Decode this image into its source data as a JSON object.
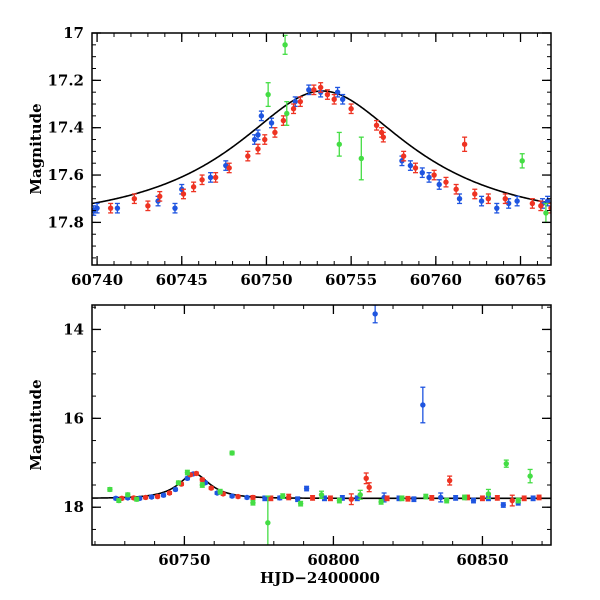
{
  "chart_data": [
    {
      "type": "scatter",
      "title": "",
      "xlabel": "",
      "ylabel": "Magnitude",
      "xlim": [
        60739.7,
        60766.8
      ],
      "ylim": [
        17.98,
        17.0
      ],
      "y_inverted": true,
      "x_ticks": [
        60740,
        60745,
        60750,
        60755,
        60760,
        60765
      ],
      "y_ticks": [
        17,
        17.2,
        17.4,
        17.6,
        17.8
      ],
      "y_tick_labels": [
        "17",
        "17.2",
        "17.4",
        "17.6",
        "17.8"
      ],
      "grid": false,
      "legend": "none",
      "model_curve": {
        "color": "#000000",
        "peak_x": 60753.3,
        "base_mag": 17.8,
        "peak_mag": 17.245,
        "u0": 0.47,
        "tE": 10.0
      },
      "series": [
        {
          "color": "#1f55e0",
          "points": [
            [
              60739.8,
              17.75,
              0.02
            ],
            [
              60740.0,
              17.74,
              0.02
            ],
            [
              60741.2,
              17.74,
              0.02
            ],
            [
              60743.6,
              17.71,
              0.02
            ],
            [
              60744.6,
              17.74,
              0.02
            ],
            [
              60745.0,
              17.66,
              0.02
            ],
            [
              60746.7,
              17.61,
              0.02
            ],
            [
              60747.6,
              17.56,
              0.02
            ],
            [
              60749.3,
              17.45,
              0.02
            ],
            [
              60749.5,
              17.43,
              0.02
            ],
            [
              60749.7,
              17.35,
              0.02
            ],
            [
              60750.3,
              17.38,
              0.02
            ],
            [
              60751.7,
              17.29,
              0.02
            ],
            [
              60752.5,
              17.24,
              0.02
            ],
            [
              60753.2,
              17.25,
              0.02
            ],
            [
              60754.2,
              17.25,
              0.02
            ],
            [
              60754.5,
              17.28,
              0.02
            ],
            [
              60758.0,
              17.54,
              0.02
            ],
            [
              60758.5,
              17.56,
              0.02
            ],
            [
              60759.2,
              17.59,
              0.02
            ],
            [
              60759.6,
              17.61,
              0.02
            ],
            [
              60760.2,
              17.64,
              0.02
            ],
            [
              60761.4,
              17.7,
              0.02
            ],
            [
              60762.7,
              17.71,
              0.02
            ],
            [
              60763.6,
              17.74,
              0.02
            ],
            [
              60764.3,
              17.72,
              0.02
            ],
            [
              60764.8,
              17.71,
              0.02
            ],
            [
              60766.3,
              17.72,
              0.02
            ],
            [
              60766.6,
              17.71,
              0.02
            ]
          ]
        },
        {
          "color": "#ee3322",
          "points": [
            [
              60740.8,
              17.74,
              0.02
            ],
            [
              60742.2,
              17.7,
              0.02
            ],
            [
              60743.0,
              17.73,
              0.02
            ],
            [
              60743.7,
              17.69,
              0.02
            ],
            [
              60745.1,
              17.68,
              0.02
            ],
            [
              60745.7,
              17.65,
              0.02
            ],
            [
              60746.2,
              17.62,
              0.02
            ],
            [
              60747.0,
              17.61,
              0.02
            ],
            [
              60747.8,
              17.57,
              0.02
            ],
            [
              60748.9,
              17.52,
              0.02
            ],
            [
              60749.5,
              17.49,
              0.02
            ],
            [
              60749.9,
              17.45,
              0.02
            ],
            [
              60750.5,
              17.42,
              0.02
            ],
            [
              60751.0,
              17.37,
              0.02
            ],
            [
              60751.6,
              17.32,
              0.02
            ],
            [
              60752.0,
              17.29,
              0.02
            ],
            [
              60752.8,
              17.24,
              0.02
            ],
            [
              60753.2,
              17.23,
              0.02
            ],
            [
              60753.6,
              17.26,
              0.02
            ],
            [
              60754.0,
              17.28,
              0.02
            ],
            [
              60755.0,
              17.32,
              0.02
            ],
            [
              60756.5,
              17.39,
              0.02
            ],
            [
              60756.8,
              17.42,
              0.02
            ],
            [
              60756.9,
              17.44,
              0.02
            ],
            [
              60758.1,
              17.52,
              0.02
            ],
            [
              60758.8,
              17.57,
              0.02
            ],
            [
              60759.9,
              17.6,
              0.02
            ],
            [
              60760.6,
              17.63,
              0.02
            ],
            [
              60761.2,
              17.66,
              0.02
            ],
            [
              60761.7,
              17.47,
              0.03
            ],
            [
              60762.3,
              17.68,
              0.02
            ],
            [
              60763.1,
              17.7,
              0.02
            ],
            [
              60764.1,
              17.7,
              0.02
            ],
            [
              60765.7,
              17.72,
              0.02
            ],
            [
              60766.2,
              17.73,
              0.02
            ],
            [
              60766.8,
              17.74,
              0.02
            ]
          ]
        },
        {
          "color": "#44dd44",
          "points": [
            [
              60750.1,
              17.26,
              0.05
            ],
            [
              60751.1,
              17.05,
              0.04
            ],
            [
              60751.2,
              17.34,
              0.05
            ],
            [
              60754.3,
              17.47,
              0.05
            ],
            [
              60755.6,
              17.53,
              0.09
            ],
            [
              60765.1,
              17.54,
              0.03
            ],
            [
              60766.5,
              17.76,
              0.04
            ]
          ]
        }
      ]
    },
    {
      "type": "scatter",
      "title": "",
      "xlabel": "HJD−2400000",
      "ylabel": "Magnitude",
      "xlim": [
        60719,
        60873
      ],
      "ylim": [
        18.85,
        13.45
      ],
      "y_inverted": true,
      "x_ticks": [
        60750,
        60800,
        60850
      ],
      "y_ticks": [
        14,
        16,
        18
      ],
      "y_tick_labels": [
        "14",
        "16",
        "18"
      ],
      "grid": false,
      "legend": "none",
      "model_curve": {
        "color": "#000000",
        "peak_x": 60753.3,
        "base_mag": 17.8,
        "peak_mag": 17.245,
        "u0": 0.47,
        "tE": 10.0
      },
      "series": [
        {
          "color": "#1f55e0",
          "points": [
            [
              60727,
              17.8,
              0.03
            ],
            [
              60731,
              17.79,
              0.03
            ],
            [
              60735,
              17.8,
              0.03
            ],
            [
              60739,
              17.77,
              0.03
            ],
            [
              60743,
              17.73,
              0.03
            ],
            [
              60747,
              17.6,
              0.03
            ],
            [
              60751,
              17.35,
              0.03
            ],
            [
              60753,
              17.25,
              0.03
            ],
            [
              60757,
              17.45,
              0.03
            ],
            [
              60761,
              17.68,
              0.03
            ],
            [
              60766,
              17.75,
              0.03
            ],
            [
              60771,
              17.78,
              0.03
            ],
            [
              60777,
              17.8,
              0.05
            ],
            [
              60782,
              17.79,
              0.04
            ],
            [
              60788,
              17.82,
              0.05
            ],
            [
              60791,
              17.58,
              0.05
            ],
            [
              60797,
              17.8,
              0.05
            ],
            [
              60803,
              17.79,
              0.05
            ],
            [
              60808,
              17.8,
              0.05
            ],
            [
              60814,
              13.65,
              0.2
            ],
            [
              60817,
              17.78,
              0.1
            ],
            [
              60822,
              17.8,
              0.05
            ],
            [
              60827,
              17.82,
              0.05
            ],
            [
              60830,
              15.7,
              0.4
            ],
            [
              60836,
              17.78,
              0.1
            ],
            [
              60841,
              17.79,
              0.05
            ],
            [
              60847,
              17.85,
              0.05
            ],
            [
              60852,
              17.8,
              0.05
            ],
            [
              60857,
              17.95,
              0.05
            ],
            [
              60862,
              17.9,
              0.05
            ],
            [
              60867,
              17.8,
              0.05
            ]
          ]
        },
        {
          "color": "#ee3322",
          "points": [
            [
              60729,
              17.8,
              0.03
            ],
            [
              60733,
              17.79,
              0.03
            ],
            [
              60737,
              17.78,
              0.03
            ],
            [
              60741,
              17.76,
              0.03
            ],
            [
              60745,
              17.68,
              0.03
            ],
            [
              60749,
              17.48,
              0.03
            ],
            [
              60752,
              17.27,
              0.03
            ],
            [
              60754,
              17.24,
              0.03
            ],
            [
              60756,
              17.38,
              0.03
            ],
            [
              60759,
              17.57,
              0.03
            ],
            [
              60763,
              17.7,
              0.03
            ],
            [
              60768,
              17.76,
              0.03
            ],
            [
              60773,
              17.78,
              0.04
            ],
            [
              60779,
              17.8,
              0.05
            ],
            [
              60785,
              17.77,
              0.06
            ],
            [
              60793,
              17.79,
              0.05
            ],
            [
              60799,
              17.8,
              0.05
            ],
            [
              60806,
              17.82,
              0.12
            ],
            [
              60811,
              17.35,
              0.12
            ],
            [
              60812,
              17.55,
              0.1
            ],
            [
              60818,
              17.8,
              0.05
            ],
            [
              60825,
              17.81,
              0.05
            ],
            [
              60833,
              17.79,
              0.05
            ],
            [
              60839,
              17.4,
              0.1
            ],
            [
              60845,
              17.78,
              0.05
            ],
            [
              60850,
              17.8,
              0.05
            ],
            [
              60855,
              17.79,
              0.05
            ],
            [
              60860,
              17.85,
              0.12
            ],
            [
              60864,
              17.8,
              0.05
            ],
            [
              60869,
              17.78,
              0.05
            ]
          ]
        },
        {
          "color": "#44dd44",
          "points": [
            [
              60725,
              17.6,
              0.04
            ],
            [
              60728,
              17.85,
              0.04
            ],
            [
              60731,
              17.72,
              0.04
            ],
            [
              60734,
              17.82,
              0.04
            ],
            [
              60748,
              17.45,
              0.04
            ],
            [
              60751,
              17.22,
              0.05
            ],
            [
              60756,
              17.5,
              0.05
            ],
            [
              60762,
              17.65,
              0.05
            ],
            [
              60766,
              16.78,
              0.04
            ],
            [
              60773,
              17.9,
              0.05
            ],
            [
              60778,
              18.35,
              0.6
            ],
            [
              60783,
              17.75,
              0.05
            ],
            [
              60789,
              17.92,
              0.05
            ],
            [
              60796,
              17.72,
              0.08
            ],
            [
              60802,
              17.85,
              0.05
            ],
            [
              60809,
              17.72,
              0.1
            ],
            [
              60816,
              17.88,
              0.05
            ],
            [
              60823,
              17.8,
              0.05
            ],
            [
              60831,
              17.76,
              0.05
            ],
            [
              60838,
              17.85,
              0.05
            ],
            [
              60844,
              17.78,
              0.05
            ],
            [
              60852,
              17.7,
              0.1
            ],
            [
              60858,
              17.02,
              0.08
            ],
            [
              60862,
              17.85,
              0.05
            ],
            [
              60866,
              17.3,
              0.15
            ]
          ]
        }
      ]
    }
  ]
}
